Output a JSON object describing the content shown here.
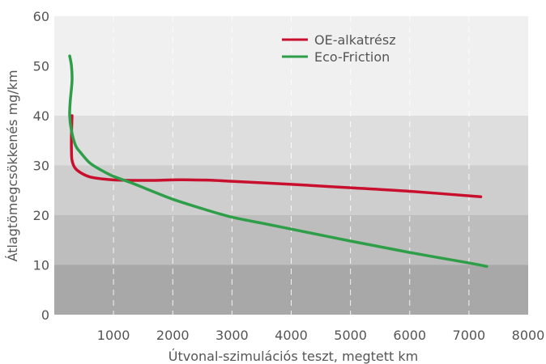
{
  "chart_data": {
    "type": "line",
    "title": "",
    "xlabel": "Útvonal-szimulációs teszt, megtett km",
    "ylabel": "Átlagtömegcsökkenés mg/km",
    "xlim": [
      0,
      8000
    ],
    "ylim": [
      0,
      60
    ],
    "x_ticks": [
      1000,
      2000,
      3000,
      4000,
      5000,
      6000,
      7000,
      8000
    ],
    "y_ticks": [
      0,
      10,
      20,
      30,
      40,
      50,
      60
    ],
    "x_tick_labels": [
      "1000",
      "2000",
      "3000",
      "4000",
      "5000",
      "6000",
      "7000",
      "8000"
    ],
    "y_tick_labels": [
      "0",
      "10",
      "20",
      "30",
      "40",
      "50",
      "60"
    ],
    "x_gridlines": "dashed",
    "y_bands": [
      {
        "from": 0,
        "to": 10,
        "color": "#a8a8a8"
      },
      {
        "from": 10,
        "to": 20,
        "color": "#bdbdbd"
      },
      {
        "from": 20,
        "to": 30,
        "color": "#cecece"
      },
      {
        "from": 30,
        "to": 40,
        "color": "#dedede"
      },
      {
        "from": 40,
        "to": 60,
        "color": "#f0f0f0"
      }
    ],
    "legend_position": "top-right",
    "series": [
      {
        "name": "OE-alkatrész",
        "color": "#c8102e",
        "points": [
          [
            300,
            40
          ],
          [
            290,
            36
          ],
          [
            290,
            33
          ],
          [
            300,
            31
          ],
          [
            350,
            29.5
          ],
          [
            450,
            28.5
          ],
          [
            600,
            27.7
          ],
          [
            800,
            27.3
          ],
          [
            1000,
            27.1
          ],
          [
            1300,
            27.0
          ],
          [
            1700,
            27.0
          ],
          [
            2000,
            27.1
          ],
          [
            2300,
            27.1
          ],
          [
            2700,
            27.0
          ],
          [
            3000,
            26.8
          ],
          [
            4000,
            26.2
          ],
          [
            5000,
            25.5
          ],
          [
            6000,
            24.8
          ],
          [
            7200,
            23.7
          ]
        ]
      },
      {
        "name": "Eco-Friction",
        "color": "#2e9e48",
        "points": [
          [
            260,
            52
          ],
          [
            290,
            50
          ],
          [
            300,
            47
          ],
          [
            270,
            43
          ],
          [
            260,
            40
          ],
          [
            290,
            37
          ],
          [
            360,
            34
          ],
          [
            450,
            32.5
          ],
          [
            600,
            30.5
          ],
          [
            800,
            29
          ],
          [
            1000,
            27.8
          ],
          [
            1300,
            26.5
          ],
          [
            1700,
            24.6
          ],
          [
            2000,
            23.2
          ],
          [
            2500,
            21.3
          ],
          [
            3000,
            19.6
          ],
          [
            3500,
            18.4
          ],
          [
            4000,
            17.2
          ],
          [
            5000,
            14.8
          ],
          [
            6000,
            12.5
          ],
          [
            7000,
            10.4
          ],
          [
            7300,
            9.7
          ]
        ]
      }
    ]
  }
}
